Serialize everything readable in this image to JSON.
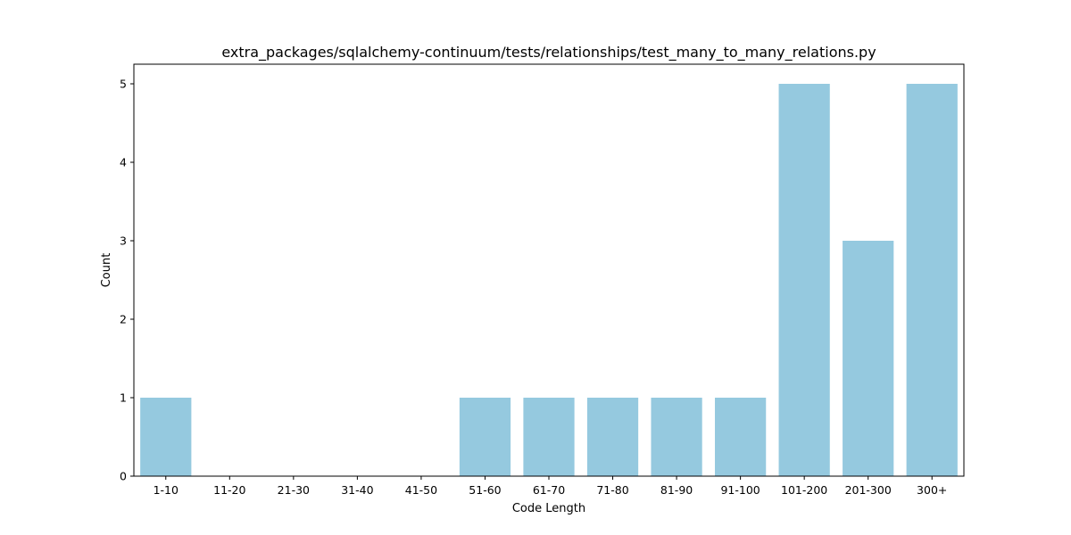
{
  "chart_data": {
    "type": "bar",
    "title": "extra_packages/sqlalchemy-continuum/tests/relationships/test_many_to_many_relations.py",
    "xlabel": "Code Length",
    "ylabel": "Count",
    "categories": [
      "1-10",
      "11-20",
      "21-30",
      "31-40",
      "41-50",
      "51-60",
      "61-70",
      "71-80",
      "81-90",
      "91-100",
      "101-200",
      "201-300",
      "300+"
    ],
    "values": [
      1,
      0,
      0,
      0,
      0,
      1,
      1,
      1,
      1,
      1,
      5,
      3,
      5
    ],
    "ylim": [
      0,
      5.25
    ],
    "yticks": [
      0,
      1,
      2,
      3,
      4,
      5
    ],
    "bar_color": "#95c9df",
    "grid": false,
    "legend": "none"
  }
}
